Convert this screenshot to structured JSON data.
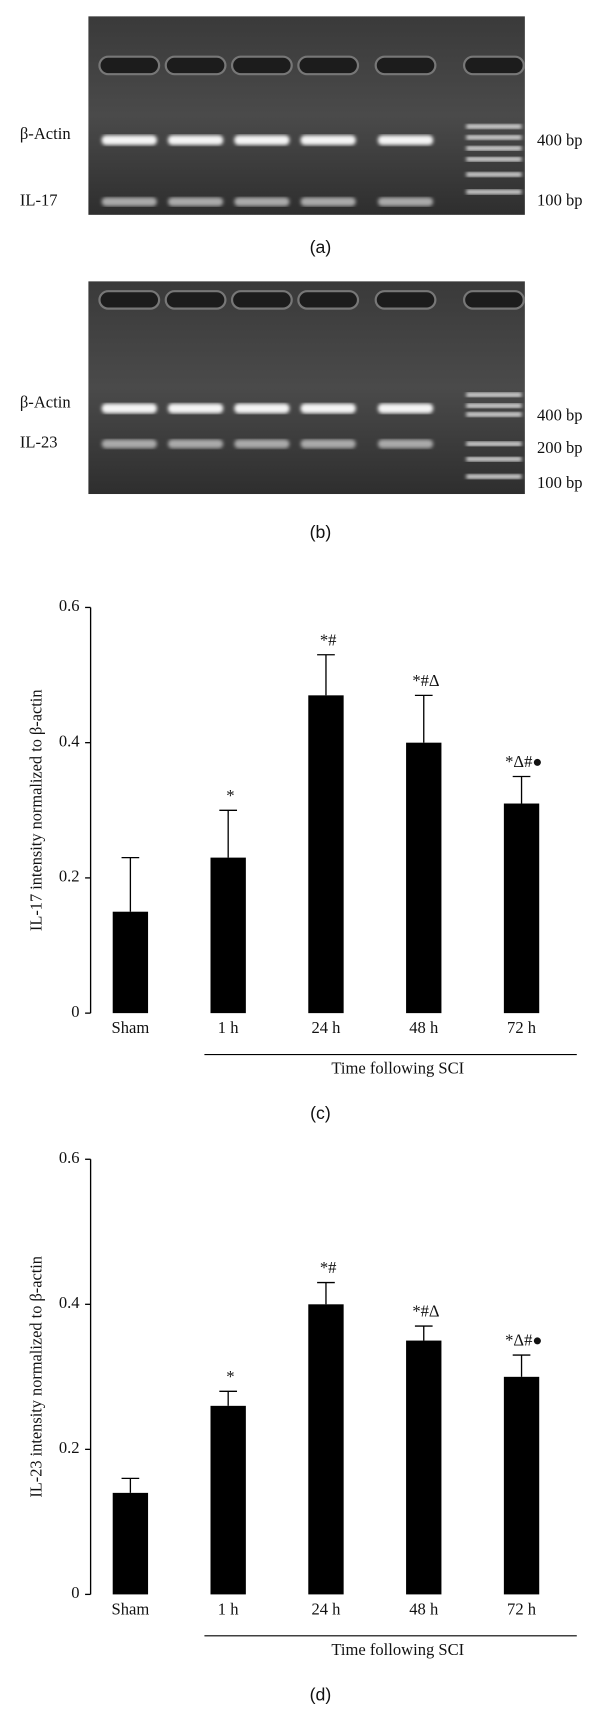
{
  "gels": [
    {
      "panel": "(a)",
      "bands": [
        "β-Actin",
        "IL-17"
      ],
      "markers": [
        "400 bp",
        "100 bp"
      ]
    },
    {
      "panel": "(b)",
      "bands": [
        "β-Actin",
        "IL-23"
      ],
      "markers": [
        "400 bp",
        "200 bp",
        "100 bp"
      ]
    }
  ],
  "chart_data": [
    {
      "type": "bar",
      "panel": "(c)",
      "ylabel": "IL-17 intensity normalized to β-actin",
      "xlabel": "Time following SCI",
      "categories": [
        "Sham",
        "1 h",
        "24 h",
        "48 h",
        "72 h"
      ],
      "values": [
        0.15,
        0.23,
        0.47,
        0.4,
        0.31
      ],
      "errors": [
        0.08,
        0.07,
        0.06,
        0.07,
        0.04
      ],
      "annotations": [
        null,
        "*",
        "*#",
        "*#Δ",
        "*Δ#●"
      ],
      "color": "#000000",
      "ylim": [
        0,
        0.6
      ],
      "yticks": [
        0,
        0.2,
        0.4,
        0.6
      ]
    },
    {
      "type": "bar",
      "panel": "(d)",
      "ylabel": "IL-23 intensity normalized to β-actin",
      "xlabel": "Time following SCI",
      "categories": [
        "Sham",
        "1 h",
        "24 h",
        "48 h",
        "72 h"
      ],
      "values": [
        0.14,
        0.26,
        0.4,
        0.35,
        0.3
      ],
      "errors": [
        0.02,
        0.02,
        0.03,
        0.02,
        0.03
      ],
      "annotations": [
        null,
        "*",
        "*#",
        "*#Δ",
        "*Δ#●"
      ],
      "color": "#000000",
      "ylim": [
        0,
        0.6
      ],
      "yticks": [
        0,
        0.2,
        0.4,
        0.6
      ]
    }
  ]
}
